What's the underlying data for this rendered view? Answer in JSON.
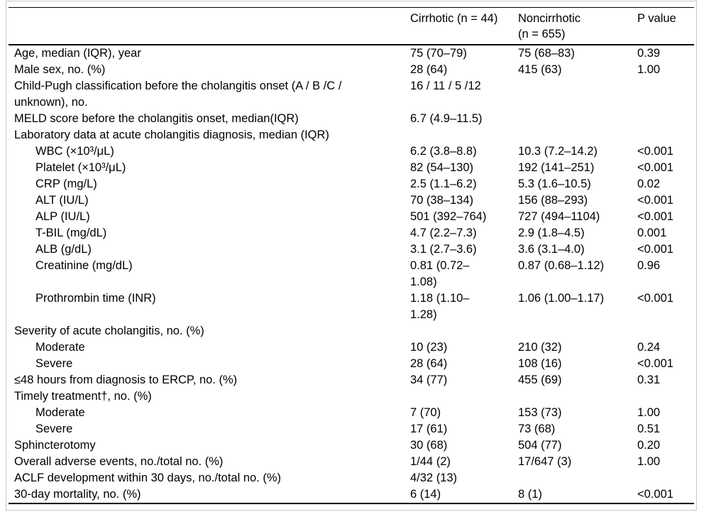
{
  "table": {
    "columns": {
      "label": "",
      "cirrhotic": "Cirrhotic (n = 44)",
      "noncirrhotic": "Noncirrhotic\n(n = 655)",
      "p": "P value"
    },
    "rows": [
      {
        "label": "Age, median (IQR), year",
        "indent": false,
        "cirrhotic": "75 (70–79)",
        "noncirrhotic": "75 (68–83)",
        "p": "0.39"
      },
      {
        "label": "Male sex, no. (%)",
        "indent": false,
        "cirrhotic": "28 (64)",
        "noncirrhotic": "415 (63)",
        "p": "1.00"
      },
      {
        "label": "Child-Pugh classification before the cholangitis onset (A / B /C /\nunknown), no.",
        "indent": false,
        "cirrhotic": "16 / 11 / 5 /12",
        "noncirrhotic": "",
        "p": ""
      },
      {
        "label": "MELD score before the cholangitis onset, median(IQR)",
        "indent": false,
        "cirrhotic": "6.7 (4.9–11.5)",
        "noncirrhotic": "",
        "p": ""
      },
      {
        "label": "Laboratory data at acute cholangitis diagnosis, median (IQR)",
        "indent": false,
        "cirrhotic": "",
        "noncirrhotic": "",
        "p": ""
      },
      {
        "label": "WBC (×10³/μL)",
        "indent": true,
        "cirrhotic": "6.2 (3.8–8.8)",
        "noncirrhotic": "10.3 (7.2–14.2)",
        "p": "<0.001"
      },
      {
        "label": "Platelet (×10³/μL)",
        "indent": true,
        "cirrhotic": "82 (54–130)",
        "noncirrhotic": "192 (141–251)",
        "p": "<0.001"
      },
      {
        "label": "CRP (mg/L)",
        "indent": true,
        "cirrhotic": "2.5 (1.1–6.2)",
        "noncirrhotic": "5.3 (1.6–10.5)",
        "p": "0.02"
      },
      {
        "label": "ALT (IU/L)",
        "indent": true,
        "cirrhotic": "70 (38–134)",
        "noncirrhotic": "156 (88–293)",
        "p": "<0.001"
      },
      {
        "label": "ALP (IU/L)",
        "indent": true,
        "cirrhotic": "501 (392–764)",
        "noncirrhotic": "727 (494–1104)",
        "p": "<0.001"
      },
      {
        "label": "T-BIL (mg/dL)",
        "indent": true,
        "cirrhotic": "4.7 (2.2–7.3)",
        "noncirrhotic": "2.9 (1.8–4.5)",
        "p": "0.001"
      },
      {
        "label": "ALB (g/dL)",
        "indent": true,
        "cirrhotic": "3.1 (2.7–3.6)",
        "noncirrhotic": "3.6 (3.1–4.0)",
        "p": "<0.001"
      },
      {
        "label": "Creatinine (mg/dL)",
        "indent": true,
        "cirrhotic": "0.81 (0.72–\n1.08)",
        "noncirrhotic": "0.87 (0.68–1.12)",
        "p": "0.96"
      },
      {
        "label": "Prothrombin time (INR)",
        "indent": true,
        "cirrhotic": "1.18 (1.10–\n1.28)",
        "noncirrhotic": "1.06 (1.00–1.17)",
        "p": "<0.001"
      },
      {
        "label": "Severity of acute cholangitis, no. (%)",
        "indent": false,
        "cirrhotic": "",
        "noncirrhotic": "",
        "p": ""
      },
      {
        "label": "Moderate",
        "indent": true,
        "cirrhotic": "10 (23)",
        "noncirrhotic": "210 (32)",
        "p": "0.24"
      },
      {
        "label": "Severe",
        "indent": true,
        "cirrhotic": "28 (64)",
        "noncirrhotic": "108 (16)",
        "p": "<0.001"
      },
      {
        "label": "≤48 hours from diagnosis to ERCP, no. (%)",
        "indent": false,
        "cirrhotic": "34 (77)",
        "noncirrhotic": "455 (69)",
        "p": "0.31"
      },
      {
        "label": "Timely treatment†, no. (%)",
        "indent": false,
        "cirrhotic": "",
        "noncirrhotic": "",
        "p": ""
      },
      {
        "label": "Moderate",
        "indent": true,
        "cirrhotic": "7 (70)",
        "noncirrhotic": "153 (73)",
        "p": "1.00"
      },
      {
        "label": "Severe",
        "indent": true,
        "cirrhotic": "17 (61)",
        "noncirrhotic": "73 (68)",
        "p": "0.51"
      },
      {
        "label": "Sphincterotomy",
        "indent": false,
        "cirrhotic": "30 (68)",
        "noncirrhotic": "504 (77)",
        "p": "0.20"
      },
      {
        "label": "Overall adverse events, no./total no. (%)",
        "indent": false,
        "cirrhotic": "1/44 (2)",
        "noncirrhotic": "17/647 (3)",
        "p": "1.00"
      },
      {
        "label": "ACLF development within 30 days, no./total no. (%)",
        "indent": false,
        "cirrhotic": "4/32 (13)",
        "noncirrhotic": "",
        "p": ""
      },
      {
        "label": "30-day mortality, no. (%)",
        "indent": false,
        "cirrhotic": "6 (14)",
        "noncirrhotic": "8 (1)",
        "p": "<0.001"
      }
    ]
  },
  "colors": {
    "text": "#000000",
    "rule": "#000000",
    "frame_border": "#c8c8c8",
    "background": "#ffffff"
  }
}
